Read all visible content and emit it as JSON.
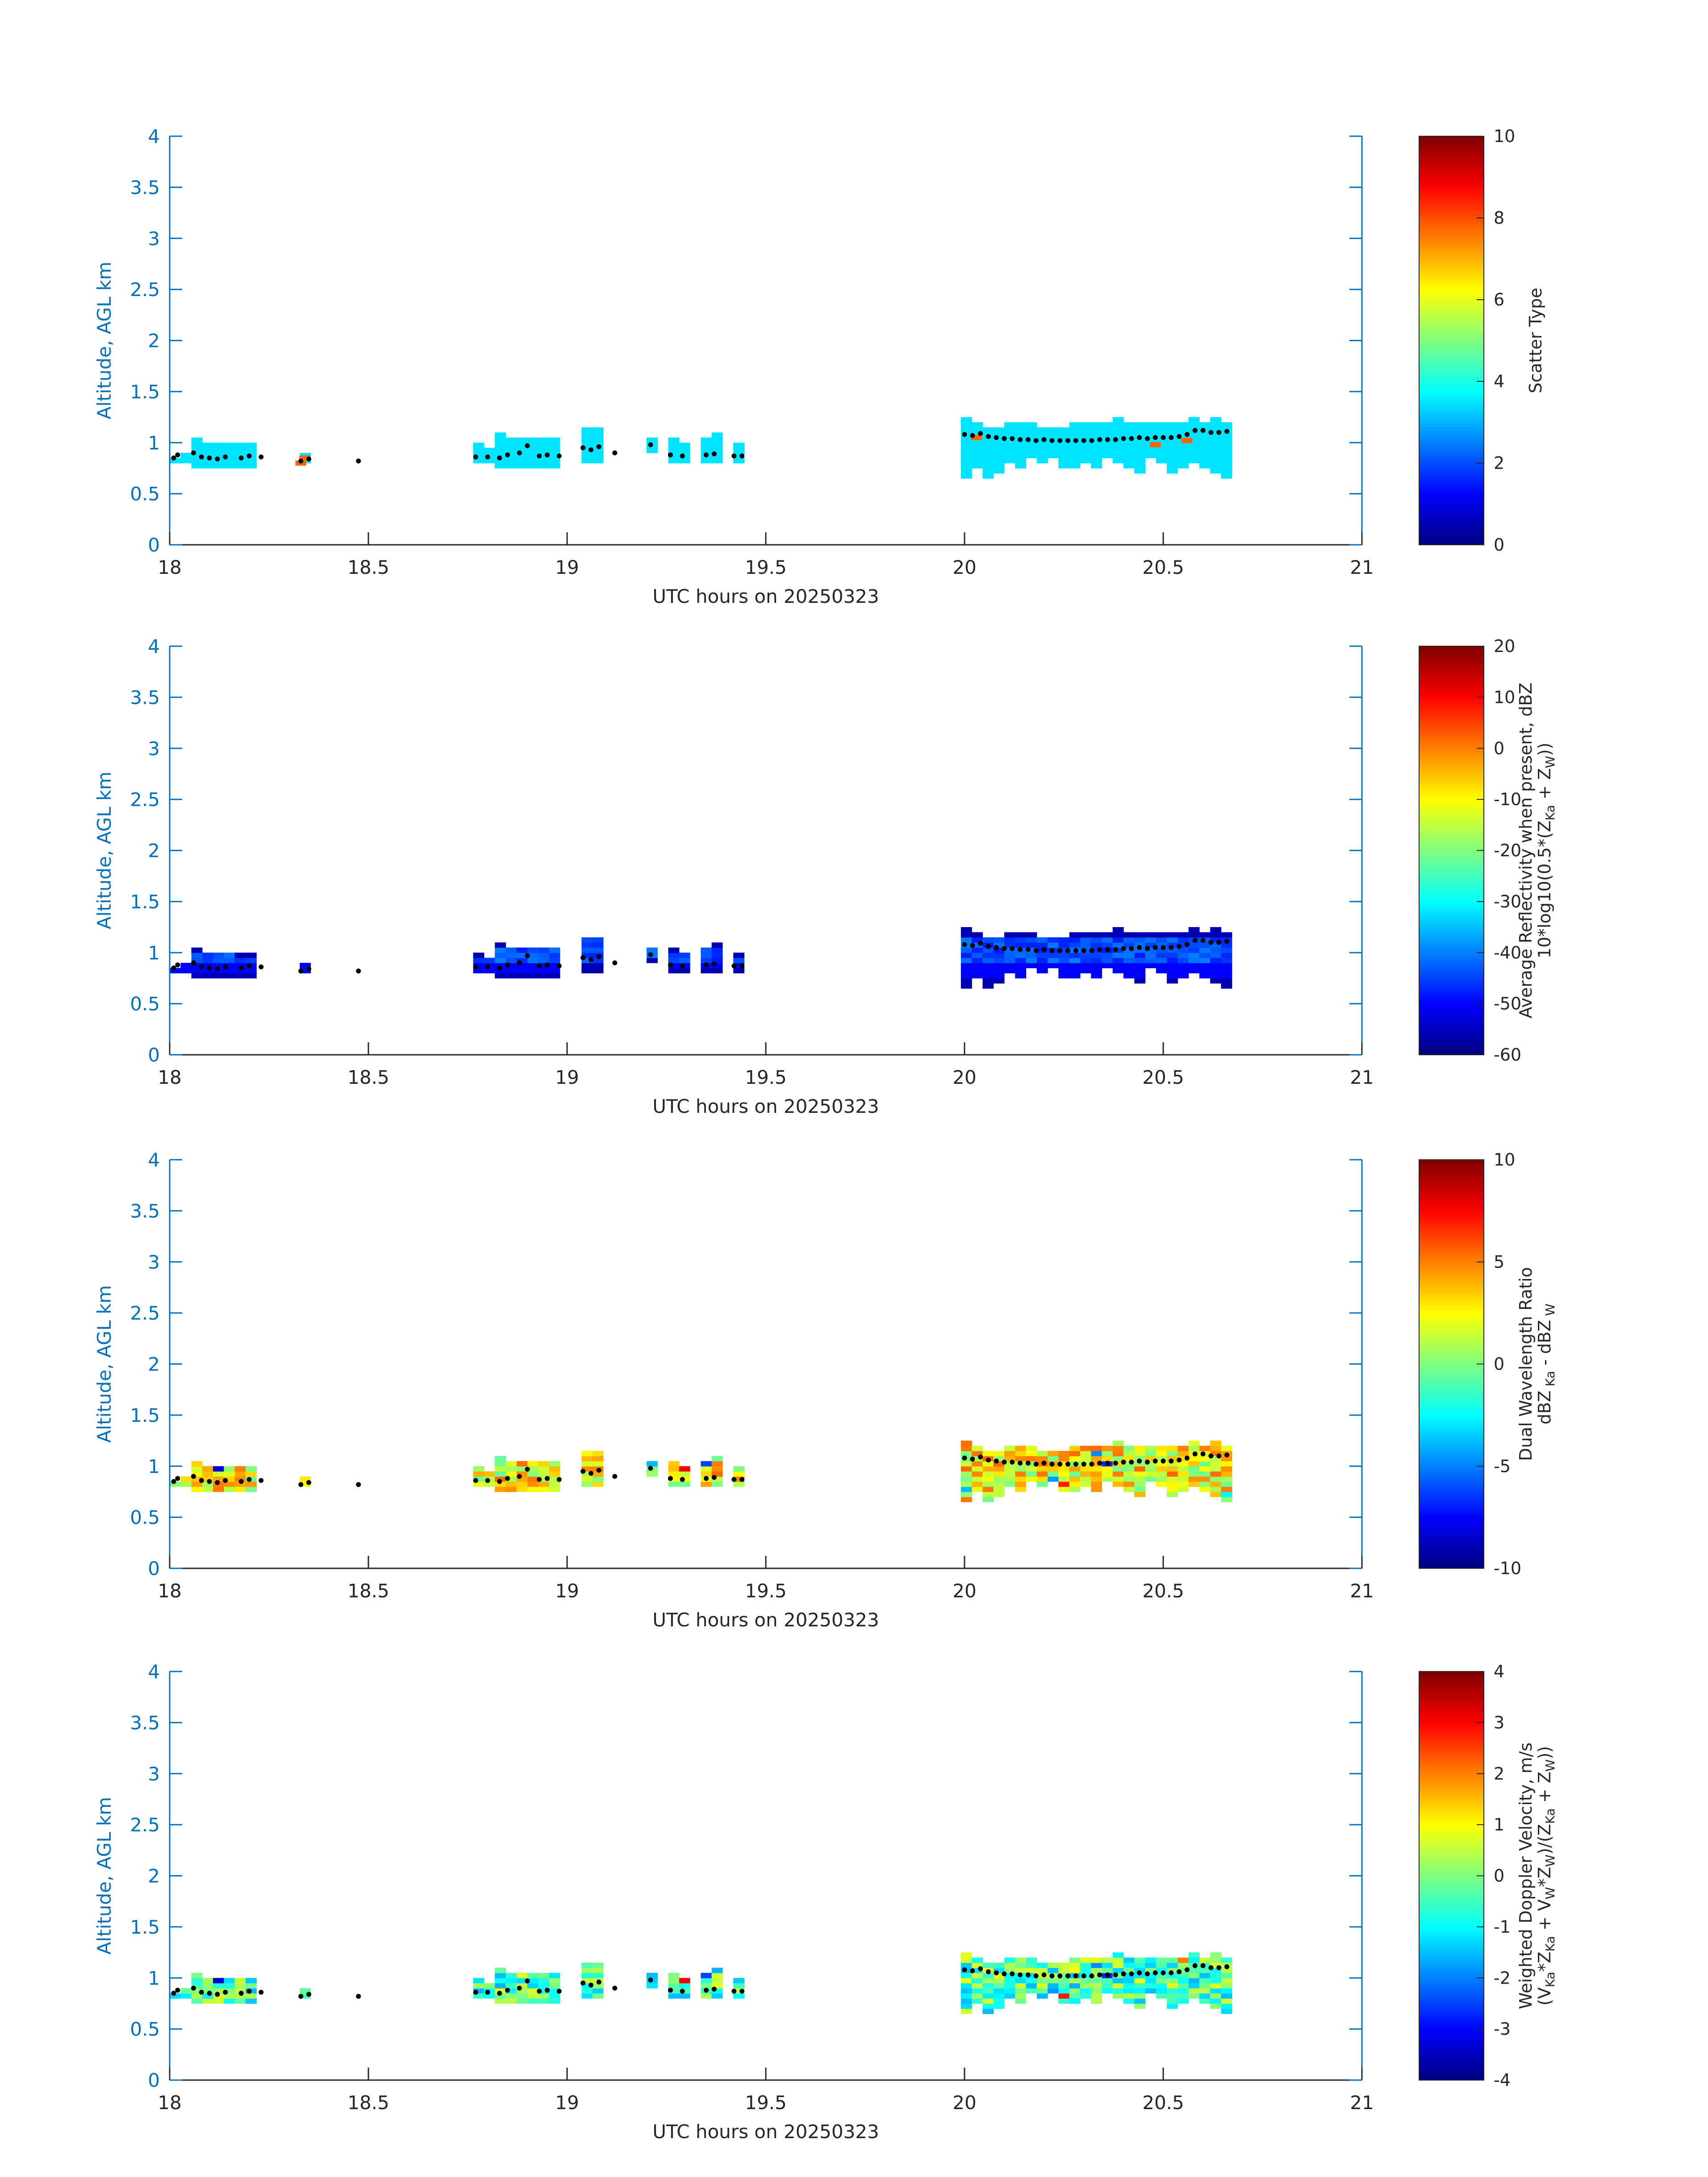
{
  "chart_data": [
    {
      "type": "heatmap",
      "xlabel": "UTC hours on 20250323",
      "ylabel": "Altitude, AGL km",
      "xlim": [
        18,
        21
      ],
      "ylim": [
        0,
        4
      ],
      "xticks": [
        "18",
        "18.5",
        "19",
        "19.5",
        "20",
        "20.5",
        "21"
      ],
      "yticks": [
        "0",
        "0.5",
        "1",
        "1.5",
        "2",
        "2.5",
        "3",
        "3.5",
        "4"
      ],
      "colorbar": {
        "label_lines": [
          [
            {
              "t": "Scatter Type"
            }
          ]
        ],
        "range": [
          0,
          10
        ],
        "ticks": [
          "0",
          "2",
          "4",
          "6",
          "8",
          "10"
        ]
      },
      "colormap": "jet",
      "cloud_fill_value": 3.5,
      "scatter_fill_value": 7.8,
      "scatter_cells": [
        [
          18.33,
          0.8
        ],
        [
          18.34,
          0.85
        ],
        [
          20.03,
          1.05
        ],
        [
          20.48,
          0.98
        ],
        [
          20.56,
          1.02
        ]
      ]
    },
    {
      "type": "heatmap",
      "xlabel": "UTC hours on 20250323",
      "ylabel": "Altitude, AGL km",
      "xlim": [
        18,
        21
      ],
      "ylim": [
        0,
        4
      ],
      "xticks": [
        "18",
        "18.5",
        "19",
        "19.5",
        "20",
        "20.5",
        "21"
      ],
      "yticks": [
        "0",
        "0.5",
        "1",
        "1.5",
        "2",
        "2.5",
        "3",
        "3.5",
        "4"
      ],
      "colorbar": {
        "label_lines": [
          [
            {
              "t": "Average Reflectivity when present, dBZ"
            }
          ],
          [
            {
              "t": "10*log10(0.5*(Z"
            },
            {
              "t": "Ka",
              "sub": true
            },
            {
              "t": " + Z"
            },
            {
              "t": "W",
              "sub": true
            },
            {
              "t": "))"
            }
          ]
        ],
        "range": [
          -60,
          20
        ],
        "ticks": [
          "-60",
          "-50",
          "-40",
          "-30",
          "-20",
          "-10",
          "0",
          "10",
          "20"
        ]
      },
      "colormap": "jet",
      "value_model": {
        "edge": -56,
        "core": -40,
        "low_edge": -50
      }
    },
    {
      "type": "heatmap",
      "xlabel": "UTC hours on 20250323",
      "ylabel": "Altitude, AGL km",
      "xlim": [
        18,
        21
      ],
      "ylim": [
        0,
        4
      ],
      "xticks": [
        "18",
        "18.5",
        "19",
        "19.5",
        "20",
        "20.5",
        "21"
      ],
      "yticks": [
        "0",
        "0.5",
        "1",
        "1.5",
        "2",
        "2.5",
        "3",
        "3.5",
        "4"
      ],
      "colorbar": {
        "label_lines": [
          [
            {
              "t": "Dual Wavelength Ratio"
            }
          ],
          [
            {
              "t": "dBZ"
            },
            {
              "t": " Ka",
              "sub": true
            },
            {
              "t": " - dBZ"
            },
            {
              "t": " W",
              "sub": true
            }
          ]
        ],
        "range": [
          -10,
          10
        ],
        "ticks": [
          "-10",
          "-5",
          "0",
          "5",
          "10"
        ]
      },
      "colormap": "jet",
      "value_model": {
        "typical": 2.5,
        "spread": 3.0
      }
    },
    {
      "type": "heatmap",
      "xlabel": "UTC hours on 20250323",
      "ylabel": "Altitude, AGL km",
      "xlim": [
        18,
        21
      ],
      "ylim": [
        0,
        4
      ],
      "xticks": [
        "18",
        "18.5",
        "19",
        "19.5",
        "20",
        "20.5",
        "21"
      ],
      "yticks": [
        "0",
        "0.5",
        "1",
        "1.5",
        "2",
        "2.5",
        "3",
        "3.5",
        "4"
      ],
      "colorbar": {
        "label_lines": [
          [
            {
              "t": "Weighted Doppler Velocity, m/s"
            }
          ],
          [
            {
              "t": "(V"
            },
            {
              "t": "Ka",
              "sub": true
            },
            {
              "t": "*Z"
            },
            {
              "t": "Ka",
              "sub": true
            },
            {
              "t": " + V"
            },
            {
              "t": "W",
              "sub": true
            },
            {
              "t": "*Z"
            },
            {
              "t": "W",
              "sub": true
            },
            {
              "t": ")/(Z"
            },
            {
              "t": "Ka",
              "sub": true
            },
            {
              "t": " + Z"
            },
            {
              "t": "W",
              "sub": true
            },
            {
              "t": "))"
            }
          ]
        ],
        "range": [
          -4,
          4
        ],
        "ticks": [
          "-4",
          "-3",
          "-2",
          "-1",
          "0",
          "1",
          "2",
          "3",
          "4"
        ]
      },
      "colormap": "jet",
      "value_model": {
        "typical": -0.4,
        "spread": 1.2
      }
    }
  ],
  "cloud_segments": [
    {
      "x0": 18.0,
      "x1": 18.045,
      "bot": 0.8,
      "top": 0.92
    },
    {
      "x0": 18.055,
      "x1": 18.15,
      "bot": 0.75,
      "top": 1.05
    },
    {
      "x0": 18.17,
      "x1": 18.23,
      "bot": 0.75,
      "top": 1.0
    },
    {
      "x0": 18.315,
      "x1": 18.365,
      "bot": 0.78,
      "top": 0.95
    },
    {
      "x0": 18.465,
      "x1": 18.48,
      "bot": 0.78,
      "top": 0.88
    },
    {
      "x0": 18.755,
      "x1": 18.83,
      "bot": 0.78,
      "top": 0.98
    },
    {
      "x0": 18.83,
      "x1": 18.99,
      "bot": 0.75,
      "top": 1.1
    },
    {
      "x0": 19.035,
      "x1": 19.085,
      "bot": 0.82,
      "top": 1.2
    },
    {
      "x0": 19.195,
      "x1": 19.23,
      "bot": 0.92,
      "top": 1.12
    },
    {
      "x0": 19.26,
      "x1": 19.31,
      "bot": 0.78,
      "top": 1.05
    },
    {
      "x0": 19.34,
      "x1": 19.38,
      "bot": 0.78,
      "top": 1.12
    },
    {
      "x0": 19.42,
      "x1": 19.45,
      "bot": 0.82,
      "top": 0.98
    },
    {
      "x0": 19.985,
      "x1": 20.66,
      "bot": 0.65,
      "top": 1.25
    }
  ],
  "cloud_base_markers": [
    [
      18.01,
      0.85
    ],
    [
      18.02,
      0.88
    ],
    [
      18.06,
      0.9
    ],
    [
      18.08,
      0.86
    ],
    [
      18.1,
      0.85
    ],
    [
      18.12,
      0.84
    ],
    [
      18.14,
      0.86
    ],
    [
      18.18,
      0.85
    ],
    [
      18.2,
      0.87
    ],
    [
      18.23,
      0.86
    ],
    [
      18.33,
      0.82
    ],
    [
      18.35,
      0.84
    ],
    [
      18.475,
      0.82
    ],
    [
      18.77,
      0.86
    ],
    [
      18.8,
      0.86
    ],
    [
      18.83,
      0.85
    ],
    [
      18.85,
      0.88
    ],
    [
      18.88,
      0.9
    ],
    [
      18.9,
      0.97
    ],
    [
      18.93,
      0.87
    ],
    [
      18.95,
      0.88
    ],
    [
      18.98,
      0.87
    ],
    [
      19.04,
      0.95
    ],
    [
      19.06,
      0.93
    ],
    [
      19.08,
      0.96
    ],
    [
      19.12,
      0.9
    ],
    [
      19.21,
      0.98
    ],
    [
      19.26,
      0.88
    ],
    [
      19.29,
      0.87
    ],
    [
      19.35,
      0.88
    ],
    [
      19.37,
      0.89
    ],
    [
      19.42,
      0.87
    ],
    [
      19.44,
      0.87
    ],
    [
      20.0,
      1.08
    ],
    [
      20.02,
      1.07
    ],
    [
      20.04,
      1.09
    ],
    [
      20.06,
      1.06
    ],
    [
      20.08,
      1.05
    ],
    [
      20.1,
      1.04
    ],
    [
      20.12,
      1.04
    ],
    [
      20.14,
      1.03
    ],
    [
      20.16,
      1.03
    ],
    [
      20.18,
      1.02
    ],
    [
      20.2,
      1.03
    ],
    [
      20.22,
      1.02
    ],
    [
      20.24,
      1.02
    ],
    [
      20.26,
      1.02
    ],
    [
      20.28,
      1.02
    ],
    [
      20.3,
      1.02
    ],
    [
      20.32,
      1.02
    ],
    [
      20.34,
      1.03
    ],
    [
      20.36,
      1.03
    ],
    [
      20.38,
      1.03
    ],
    [
      20.4,
      1.04
    ],
    [
      20.42,
      1.04
    ],
    [
      20.44,
      1.05
    ],
    [
      20.46,
      1.04
    ],
    [
      20.48,
      1.05
    ],
    [
      20.5,
      1.05
    ],
    [
      20.52,
      1.05
    ],
    [
      20.54,
      1.06
    ],
    [
      20.56,
      1.08
    ],
    [
      20.58,
      1.12
    ],
    [
      20.6,
      1.12
    ],
    [
      20.62,
      1.1
    ],
    [
      20.64,
      1.1
    ],
    [
      20.66,
      1.11
    ]
  ],
  "colors": {
    "axis": "#0072BD",
    "text": "#262626",
    "marker": "#000000"
  }
}
